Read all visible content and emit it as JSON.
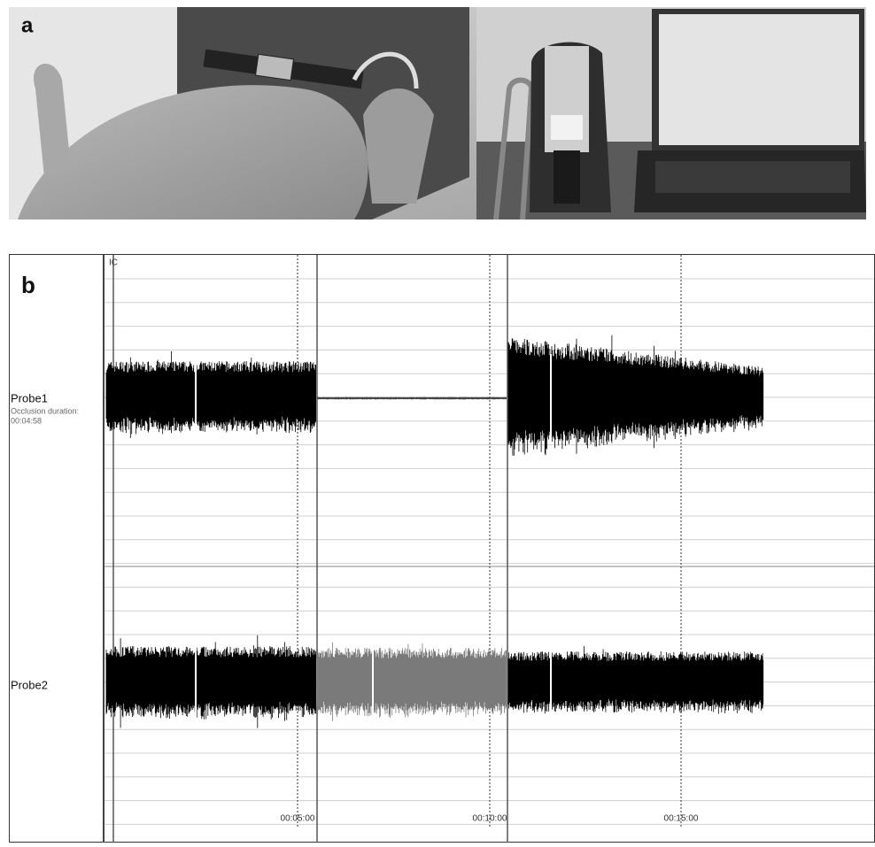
{
  "panel_a": {
    "label": "a"
  },
  "panel_b": {
    "label": "b",
    "marker": "IC",
    "channels": [
      {
        "name": "Probe1",
        "note": "Occlusion duration:",
        "duration": "00:04:58"
      },
      {
        "name": "Probe2"
      }
    ],
    "time_labels": [
      "00:05:00",
      "00:10:00",
      "00:15:00"
    ]
  }
}
